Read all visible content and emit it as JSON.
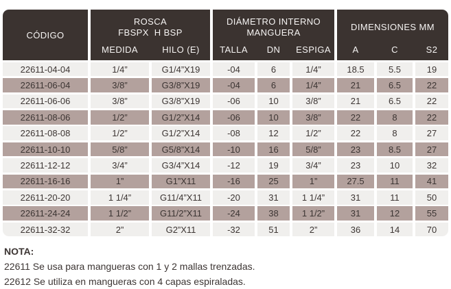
{
  "colors": {
    "header_bg": "#3b3330",
    "header_text": "#f6f4f3",
    "row_light": "#f0efed",
    "row_mauve": "#b3a19d",
    "text_dark": "#3c3533"
  },
  "table": {
    "header": {
      "codigo": "CÓDIGO",
      "rosca": {
        "line1": "ROSCA",
        "line2": "FBSPX  H BSP",
        "sub1": "MEDIDA",
        "sub2": "HILO (E)"
      },
      "diametro": {
        "line1": "DIÁMETRO INTERNO",
        "line2": "MANGUERA",
        "sub1": "TALLA",
        "sub2": "DN",
        "sub3": "ESPIGA"
      },
      "dimensiones": {
        "line1": "DIMENSIONES MM",
        "sub1": "A",
        "sub2": "C",
        "sub3": "S2"
      }
    },
    "rows": [
      [
        "22611-04-04",
        "1/4”",
        "G1/4”X19",
        "-04",
        "6",
        "1/4”",
        "18.5",
        "5.5",
        "19"
      ],
      [
        "22611-06-04",
        "3/8”",
        "G3/8”X19",
        "-04",
        "6",
        "1/4”",
        "21",
        "6.5",
        "22"
      ],
      [
        "22611-06-06",
        "3/8”",
        "G3/8”X19",
        "-06",
        "10",
        "3/8”",
        "21",
        "6.5",
        "22"
      ],
      [
        "22611-08-06",
        "1/2”",
        "G1/2”X14",
        "-06",
        "10",
        "3/8”",
        "22",
        "8",
        "22"
      ],
      [
        "22611-08-08",
        "1/2”",
        "G1/2”X14",
        "-08",
        "12",
        "1/2”",
        "22",
        "8",
        "27"
      ],
      [
        "22611-10-10",
        "5/8”",
        "G5/8”X14",
        "-10",
        "16",
        "5/8”",
        "23",
        "8.5",
        "27"
      ],
      [
        "22611-12-12",
        "3/4”",
        "G3/4”X14",
        "-12",
        "19",
        "3/4”",
        "23",
        "10",
        "32"
      ],
      [
        "22611-16-16",
        "1”",
        "G1”X11",
        "-16",
        "25",
        "1”",
        "27.5",
        "11",
        "41"
      ],
      [
        "22611-20-20",
        "1 1/4”",
        "G11/4”X11",
        "-20",
        "31",
        "1 1/4”",
        "31",
        "11",
        "50"
      ],
      [
        "22611-24-24",
        "1 1/2”",
        "G11/2”X11",
        "-24",
        "38",
        "1 1/2”",
        "31",
        "12",
        "55"
      ],
      [
        "22611-32-32",
        "2”",
        "G2”X11",
        "-32",
        "51",
        "2”",
        "36",
        "14",
        "70"
      ]
    ]
  },
  "note": {
    "title": "NOTA:",
    "line1": "22611 Se usa para mangueras con 1 y 2 mallas trenzadas.",
    "line2": "22612 Se utiliza en mangueras con 4 capas espiraladas."
  }
}
